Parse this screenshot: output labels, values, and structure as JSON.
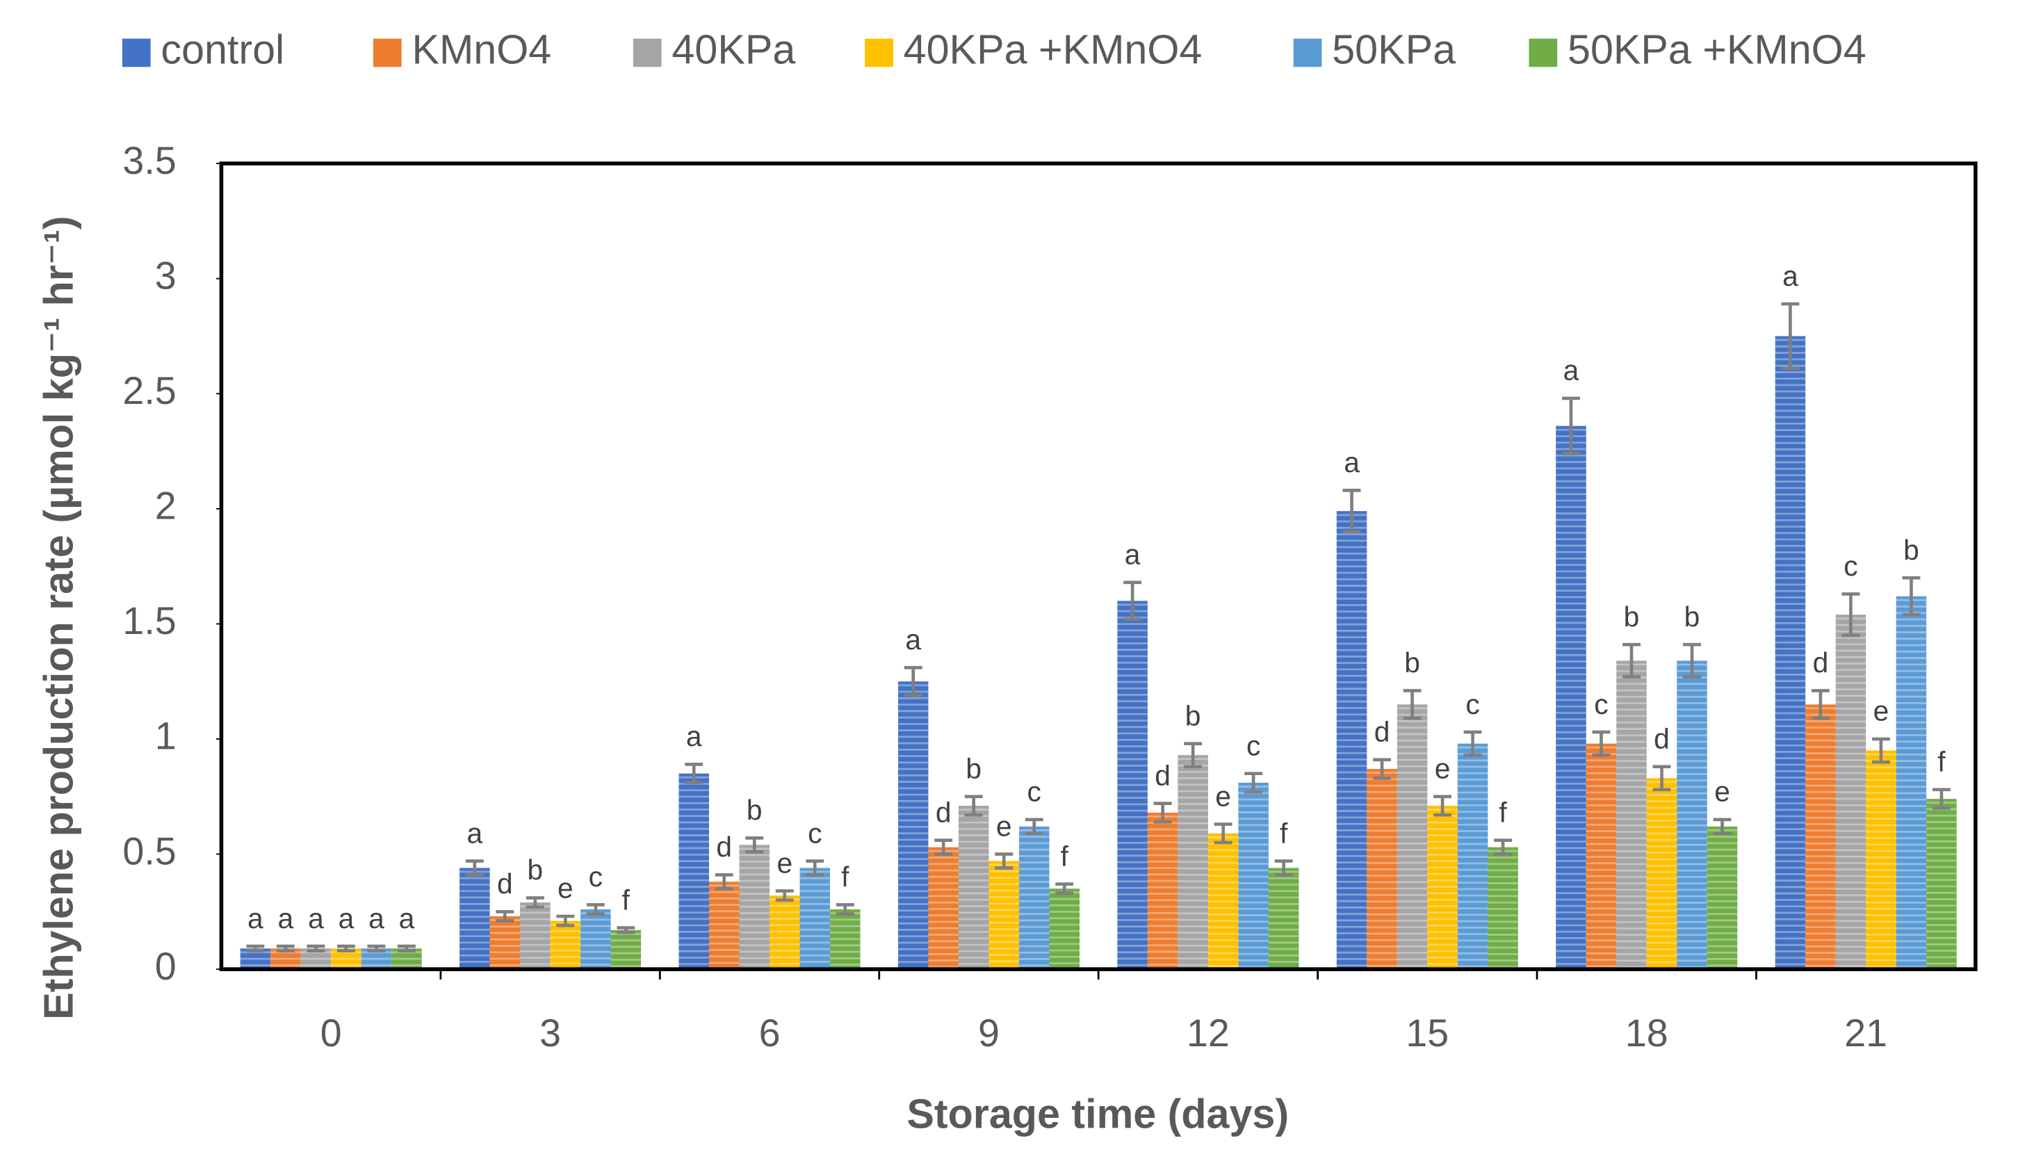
{
  "chart_data": {
    "type": "bar",
    "x_label": "Storage time (days)",
    "y_label": "Ethylene production rate (µmol kg⁻¹ hr⁻¹)",
    "categories": [
      "0",
      "3",
      "6",
      "9",
      "12",
      "15",
      "18",
      "21"
    ],
    "ylim": [
      0,
      3.5
    ],
    "yticks": [
      0,
      0.5,
      1,
      1.5,
      2,
      2.5,
      3,
      3.5
    ],
    "legend": "top",
    "series": [
      {
        "name": "control",
        "color": "#4472c4",
        "values": [
          0.09,
          0.44,
          0.85,
          1.25,
          1.6,
          1.99,
          2.36,
          2.75
        ],
        "errors": [
          0.01,
          0.03,
          0.04,
          0.06,
          0.08,
          0.09,
          0.12,
          0.14
        ],
        "letters": [
          "a",
          "a",
          "a",
          "a",
          "a",
          "a",
          "a",
          "a"
        ]
      },
      {
        "name": "KMnO4",
        "color": "#ed7d31",
        "values": [
          0.09,
          0.23,
          0.38,
          0.53,
          0.68,
          0.87,
          0.98,
          1.15
        ],
        "errors": [
          0.01,
          0.02,
          0.03,
          0.03,
          0.04,
          0.04,
          0.05,
          0.06
        ],
        "letters": [
          "a",
          "d",
          "d",
          "d",
          "d",
          "d",
          "c",
          "d"
        ]
      },
      {
        "name": "40KPa",
        "color": "#a5a5a5",
        "values": [
          0.09,
          0.29,
          0.54,
          0.71,
          0.93,
          1.15,
          1.34,
          1.54
        ],
        "errors": [
          0.01,
          0.02,
          0.03,
          0.04,
          0.05,
          0.06,
          0.07,
          0.09
        ],
        "letters": [
          "a",
          "b",
          "b",
          "b",
          "b",
          "b",
          "b",
          "c"
        ]
      },
      {
        "name": "40KPa +KMnO4",
        "color": "#ffc000",
        "values": [
          0.09,
          0.21,
          0.32,
          0.47,
          0.59,
          0.71,
          0.83,
          0.95
        ],
        "errors": [
          0.01,
          0.02,
          0.02,
          0.03,
          0.04,
          0.04,
          0.05,
          0.05
        ],
        "letters": [
          "a",
          "e",
          "e",
          "e",
          "e",
          "e",
          "d",
          "e"
        ]
      },
      {
        "name": "50KPa",
        "color": "#5b9bd5",
        "values": [
          0.09,
          0.26,
          0.44,
          0.62,
          0.81,
          0.98,
          1.34,
          1.62
        ],
        "errors": [
          0.01,
          0.02,
          0.03,
          0.03,
          0.04,
          0.05,
          0.07,
          0.08
        ],
        "letters": [
          "a",
          "c",
          "c",
          "c",
          "c",
          "c",
          "b",
          "b"
        ]
      },
      {
        "name": "50KPa +KMnO4",
        "color": "#70ad47",
        "values": [
          0.09,
          0.17,
          0.26,
          0.35,
          0.44,
          0.53,
          0.62,
          0.74
        ],
        "errors": [
          0.01,
          0.01,
          0.02,
          0.02,
          0.03,
          0.03,
          0.03,
          0.04
        ],
        "letters": [
          "a",
          "f",
          "f",
          "f",
          "f",
          "f",
          "e",
          "f"
        ]
      }
    ]
  }
}
